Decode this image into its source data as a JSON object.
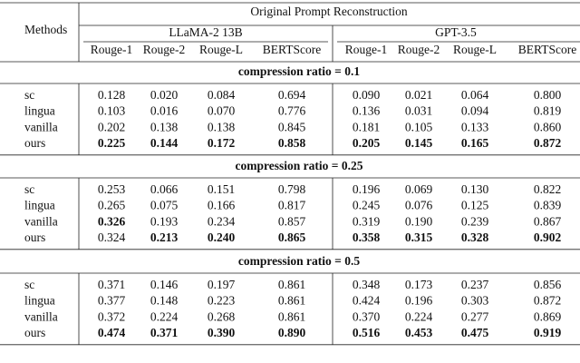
{
  "header": {
    "methods": "Methods",
    "title": "Original Prompt Reconstruction",
    "models": [
      {
        "name": "LLaMA-2 13B",
        "metrics": [
          "Rouge-1",
          "Rouge-2",
          "Rouge-L",
          "BERTScore"
        ]
      },
      {
        "name": "GPT-3.5",
        "metrics": [
          "Rouge-1",
          "Rouge-2",
          "Rouge-L",
          "BERTScore"
        ]
      }
    ]
  },
  "sections": [
    {
      "label": "compression ratio = 0.1",
      "rows": [
        {
          "method": "sc",
          "cells": [
            "0.128",
            "0.020",
            "0.084",
            "0.694",
            "0.090",
            "0.021",
            "0.064",
            "0.800"
          ],
          "bold": []
        },
        {
          "method": "lingua",
          "cells": [
            "0.103",
            "0.016",
            "0.070",
            "0.776",
            "0.136",
            "0.031",
            "0.094",
            "0.819"
          ],
          "bold": []
        },
        {
          "method": "vanilla",
          "cells": [
            "0.202",
            "0.138",
            "0.138",
            "0.845",
            "0.181",
            "0.105",
            "0.133",
            "0.860"
          ],
          "bold": []
        },
        {
          "method": "ours",
          "cells": [
            "0.225",
            "0.144",
            "0.172",
            "0.858",
            "0.205",
            "0.145",
            "0.165",
            "0.872"
          ],
          "bold": [
            0,
            1,
            2,
            3,
            4,
            5,
            6,
            7
          ]
        }
      ]
    },
    {
      "label": "compression ratio = 0.25",
      "rows": [
        {
          "method": "sc",
          "cells": [
            "0.253",
            "0.066",
            "0.151",
            "0.798",
            "0.196",
            "0.069",
            "0.130",
            "0.822"
          ],
          "bold": []
        },
        {
          "method": "lingua",
          "cells": [
            "0.265",
            "0.075",
            "0.166",
            "0.817",
            "0.245",
            "0.076",
            "0.125",
            "0.839"
          ],
          "bold": []
        },
        {
          "method": "vanilla",
          "cells": [
            "0.326",
            "0.193",
            "0.234",
            "0.857",
            "0.319",
            "0.190",
            "0.239",
            "0.867"
          ],
          "bold": [
            0
          ]
        },
        {
          "method": "ours",
          "cells": [
            "0.324",
            "0.213",
            "0.240",
            "0.865",
            "0.358",
            "0.315",
            "0.328",
            "0.902"
          ],
          "bold": [
            1,
            2,
            3,
            4,
            5,
            6,
            7
          ]
        }
      ]
    },
    {
      "label": "compression ratio = 0.5",
      "rows": [
        {
          "method": "sc",
          "cells": [
            "0.371",
            "0.146",
            "0.197",
            "0.861",
            "0.348",
            "0.173",
            "0.237",
            "0.856"
          ],
          "bold": []
        },
        {
          "method": "lingua",
          "cells": [
            "0.377",
            "0.148",
            "0.223",
            "0.861",
            "0.424",
            "0.196",
            "0.303",
            "0.872"
          ],
          "bold": []
        },
        {
          "method": "vanilla",
          "cells": [
            "0.372",
            "0.224",
            "0.268",
            "0.861",
            "0.370",
            "0.224",
            "0.277",
            "0.869"
          ],
          "bold": []
        },
        {
          "method": "ours",
          "cells": [
            "0.474",
            "0.371",
            "0.390",
            "0.890",
            "0.516",
            "0.453",
            "0.475",
            "0.919"
          ],
          "bold": [
            0,
            1,
            2,
            3,
            4,
            5,
            6,
            7
          ]
        }
      ]
    }
  ]
}
